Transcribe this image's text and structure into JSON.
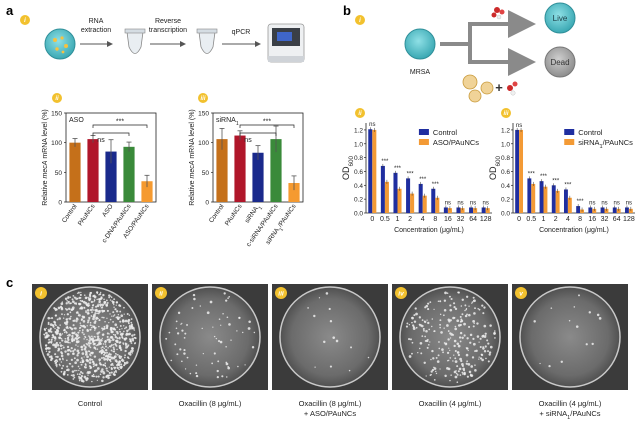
{
  "panels": {
    "a": "a",
    "b": "b",
    "c": "c"
  },
  "sub_markers": {
    "i": "i",
    "ii": "ii",
    "iii": "iii",
    "iv": "iv",
    "v": "v"
  },
  "workflow": {
    "step1": [
      "RNA",
      "extraction"
    ],
    "step2": [
      "Reverse",
      "transcription"
    ],
    "step3": "qPCR"
  },
  "schematic": {
    "mrsa": "MRSA",
    "live": "Live",
    "dead": "Dead",
    "plus": "+"
  },
  "colors": {
    "orange_bar": "#c5701a",
    "red_bar": "#b0162a",
    "blue_bar": "#1a2a8c",
    "green_bar": "#3a8a3a",
    "light_orange_bar": "#f59a30",
    "control_blue": "#1f2ea0",
    "treat_orange": "#f39a35",
    "cell_teal": "#5fc0c8"
  },
  "chart_data": [
    {
      "id": "a-ii",
      "type": "bar",
      "inset_label": "ASO",
      "ylabel": "Relative mecA mRNA level (%)",
      "ylim": [
        0,
        150
      ],
      "yticks": [
        0,
        50,
        100,
        150
      ],
      "categories": [
        "Control",
        "PAuNCs",
        "ASO",
        "c-DNA/PAuNCs",
        "ASO/PAuNCs"
      ],
      "values": [
        100,
        106,
        85,
        93,
        35
      ],
      "errors": [
        7,
        6,
        20,
        8,
        10
      ],
      "bar_colors": [
        "#c5701a",
        "#b0162a",
        "#1a2a8c",
        "#3a8a3a",
        "#f59a30"
      ],
      "annotations": [
        {
          "text": "ns",
          "from": 1,
          "to": 3
        },
        {
          "text": "***",
          "from": 1,
          "to": 4
        }
      ]
    },
    {
      "id": "a-iii",
      "type": "bar",
      "inset_label": "siRNA1",
      "ylabel": "Relative mecA mRNA level (%)",
      "ylim": [
        0,
        150
      ],
      "yticks": [
        0,
        50,
        100,
        150
      ],
      "categories": [
        "Control",
        "PAuNCs",
        "siRNA1",
        "c-siRNA/PAuNCs",
        "siRNA1/PAuNCs"
      ],
      "values": [
        106,
        112,
        83,
        106,
        32
      ],
      "errors": [
        18,
        8,
        12,
        22,
        12
      ],
      "bar_colors": [
        "#c5701a",
        "#b0162a",
        "#1a2a8c",
        "#3a8a3a",
        "#f59a30"
      ],
      "annotations": [
        {
          "text": "ns",
          "from": 1,
          "to": 3
        },
        {
          "text": "***",
          "from": 1,
          "to": 4
        }
      ]
    },
    {
      "id": "b-ii",
      "type": "bar",
      "ylabel": "OD600",
      "xlabel": "Concentration (μg/mL)",
      "ylim": [
        0,
        1.3
      ],
      "yticks": [
        0,
        0.2,
        0.4,
        0.6,
        0.8,
        1.0,
        1.2
      ],
      "categories": [
        "0",
        "0.5",
        "1",
        "2",
        "4",
        "8",
        "16",
        "32",
        "64",
        "128"
      ],
      "series": [
        {
          "name": "Control",
          "values": [
            1.21,
            0.68,
            0.58,
            0.5,
            0.42,
            0.35,
            0.08,
            0.08,
            0.08,
            0.08
          ]
        },
        {
          "name": "ASO/PAuNCs",
          "values": [
            1.2,
            0.45,
            0.35,
            0.28,
            0.25,
            0.22,
            0.07,
            0.07,
            0.07,
            0.07
          ]
        }
      ],
      "sig": [
        "ns",
        "***",
        "***",
        "***",
        "***",
        "***",
        "ns",
        "ns",
        "ns",
        "ns"
      ],
      "legend_position": "top-right"
    },
    {
      "id": "b-iii",
      "type": "bar",
      "ylabel": "OD600",
      "xlabel": "Concentration (μg/mL)",
      "ylim": [
        0,
        1.3
      ],
      "yticks": [
        0,
        0.2,
        0.4,
        0.6,
        0.8,
        1.0,
        1.2
      ],
      "categories": [
        "0",
        "0.5",
        "1",
        "2",
        "4",
        "8",
        "16",
        "32",
        "64",
        "128"
      ],
      "series": [
        {
          "name": "Control",
          "values": [
            1.2,
            0.5,
            0.46,
            0.4,
            0.34,
            0.1,
            0.08,
            0.08,
            0.08,
            0.08
          ]
        },
        {
          "name": "siRNA1/PAuNCs",
          "values": [
            1.2,
            0.42,
            0.38,
            0.32,
            0.22,
            0.05,
            0.06,
            0.06,
            0.06,
            0.06
          ]
        }
      ],
      "sig": [
        "ns",
        "***",
        "***",
        "***",
        "***",
        "***",
        "ns",
        "ns",
        "ns",
        "ns"
      ],
      "legend_position": "top-right"
    }
  ],
  "plates": [
    {
      "marker": "i",
      "caption": [
        "Control"
      ],
      "density": "high"
    },
    {
      "marker": "ii",
      "caption": [
        "Oxacillin (8 μg/mL)"
      ],
      "density": "low"
    },
    {
      "marker": "iii",
      "caption": [
        "Oxacillin (8 μg/mL)",
        "+ ASO/PAuNCs"
      ],
      "density": "very-low"
    },
    {
      "marker": "iv",
      "caption": [
        "Oxacillin (4  μg/mL)"
      ],
      "density": "medium"
    },
    {
      "marker": "v",
      "caption": [
        "Oxacillin (4  μg/mL)",
        "+ siRNA1/PAuNCs"
      ],
      "density": "very-low"
    }
  ]
}
